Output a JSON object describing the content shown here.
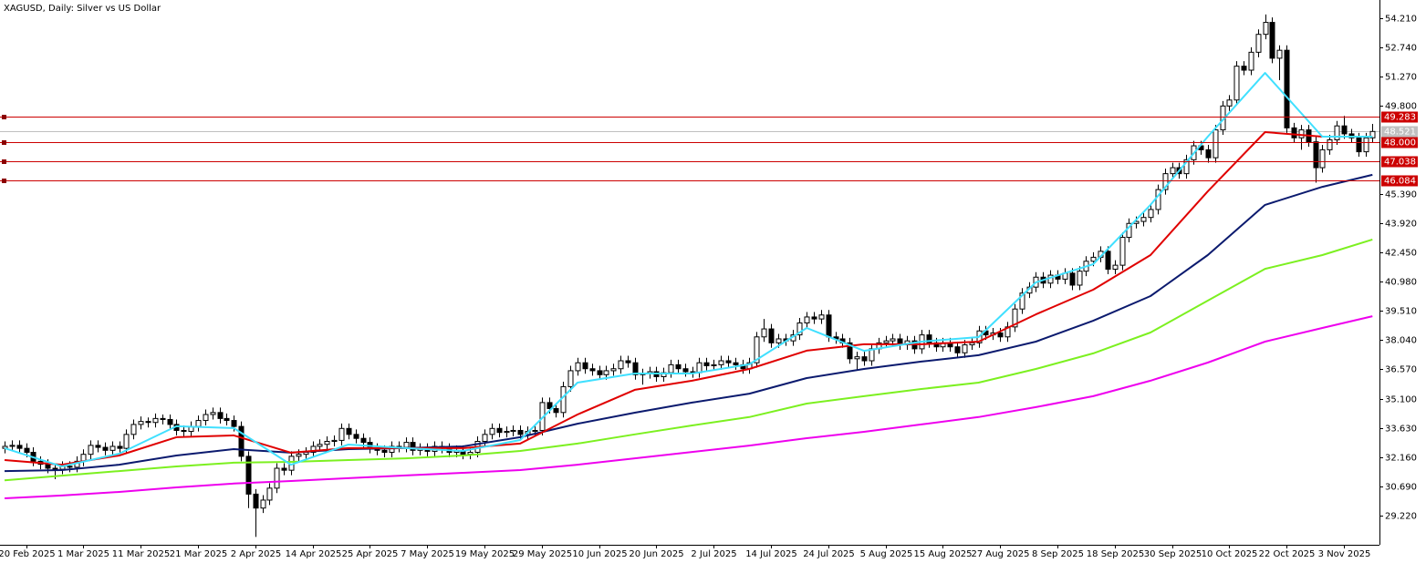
{
  "chart_data": {
    "type": "candlestick",
    "title": "XAGUSD, Daily:  Silver vs US Dollar",
    "categories": [
      null,
      null,
      null,
      "20 Feb 2025",
      null,
      null,
      null,
      null,
      null,
      null,
      null,
      "1 Mar 2025",
      null,
      null,
      null,
      null,
      null,
      null,
      null,
      "11 Mar 2025",
      null,
      null,
      null,
      null,
      null,
      null,
      null,
      "21 Mar 2025",
      null,
      null,
      null,
      null,
      null,
      null,
      null,
      "2 Apr 2025",
      null,
      null,
      null,
      null,
      null,
      null,
      null,
      "14 Apr 2025",
      null,
      null,
      null,
      null,
      null,
      null,
      null,
      "25 Apr 2025",
      null,
      null,
      null,
      null,
      null,
      null,
      null,
      "7 May 2025",
      null,
      null,
      null,
      null,
      null,
      null,
      null,
      "19 May 2025",
      null,
      null,
      null,
      null,
      null,
      null,
      null,
      "29 May 2025",
      null,
      null,
      null,
      null,
      null,
      null,
      null,
      "10 Jun 2025",
      null,
      null,
      null,
      null,
      null,
      null,
      null,
      "20 Jun 2025",
      null,
      null,
      null,
      null,
      null,
      null,
      null,
      "2 Jul 2025",
      null,
      null,
      null,
      null,
      null,
      null,
      null,
      "14 Jul 2025",
      null,
      null,
      null,
      null,
      null,
      null,
      null,
      "24 Jul 2025",
      null,
      null,
      null,
      null,
      null,
      null,
      null,
      "5 Aug 2025",
      null,
      null,
      null,
      null,
      null,
      null,
      null,
      "15 Aug 2025",
      null,
      null,
      null,
      null,
      null,
      null,
      null,
      "27 Aug 2025",
      null,
      null,
      null,
      null,
      null,
      null,
      null,
      "8 Sep 2025",
      null,
      null,
      null,
      null,
      null,
      null,
      null,
      "18 Sep 2025",
      null,
      null,
      null,
      null,
      null,
      null,
      null,
      "30 Sep 2025",
      null,
      null,
      null,
      null,
      null,
      null,
      null,
      "10 Oct 2025",
      null,
      null,
      null,
      null,
      null,
      null,
      null,
      "22 Oct 2025",
      null,
      null,
      null,
      null,
      null,
      null,
      null,
      "3 Nov 2025",
      null,
      null,
      null,
      null
    ],
    "open": [
      32.6,
      32.7,
      32.75,
      32.6,
      32.4,
      31.95,
      31.8,
      31.6,
      31.55,
      31.7,
      31.65,
      31.95,
      32.3,
      32.75,
      32.65,
      32.5,
      32.7,
      32.6,
      33.3,
      33.8,
      33.95,
      33.9,
      34.1,
      34.05,
      33.8,
      33.5,
      33.45,
      33.7,
      34.0,
      34.3,
      34.4,
      34.1,
      34.0,
      33.7,
      32.2,
      30.3,
      29.6,
      30.0,
      30.6,
      31.6,
      31.5,
      32.2,
      32.3,
      32.4,
      32.7,
      32.8,
      32.95,
      33.0,
      33.6,
      33.3,
      33.1,
      32.9,
      32.6,
      32.5,
      32.4,
      32.7,
      32.65,
      32.9,
      32.5,
      32.6,
      32.45,
      32.7,
      32.6,
      32.4,
      32.5,
      32.3,
      32.4,
      32.95,
      33.3,
      33.6,
      33.4,
      33.45,
      33.5,
      33.3,
      33.45,
      33.5,
      34.9,
      34.6,
      34.4,
      35.7,
      36.5,
      36.9,
      36.6,
      36.5,
      36.3,
      36.5,
      36.6,
      37.0,
      36.9,
      36.3,
      36.35,
      36.45,
      36.2,
      36.4,
      36.8,
      36.6,
      36.45,
      36.4,
      36.9,
      36.75,
      36.8,
      37.0,
      36.9,
      36.8,
      36.6,
      36.9,
      38.2,
      38.6,
      37.9,
      38.1,
      38.0,
      38.3,
      38.9,
      39.2,
      39.1,
      39.3,
      38.2,
      38.1,
      37.9,
      37.1,
      37.2,
      37.0,
      37.6,
      37.9,
      38.0,
      38.1,
      37.8,
      38.0,
      37.6,
      38.3,
      37.9,
      37.7,
      37.9,
      37.7,
      37.4,
      37.8,
      37.9,
      38.5,
      38.3,
      38.4,
      38.2,
      38.7,
      39.6,
      40.4,
      40.7,
      41.2,
      40.9,
      41.3,
      41.1,
      41.4,
      40.8,
      41.5,
      42.0,
      42.2,
      42.5,
      41.6,
      41.8,
      43.2,
      43.9,
      44.0,
      44.2,
      44.6,
      45.6,
      46.4,
      46.7,
      46.4,
      47.1,
      47.8,
      47.6,
      47.2,
      48.6,
      49.8,
      50.1,
      51.8,
      51.6,
      52.5,
      53.4,
      54.0,
      52.2,
      52.6,
      48.7,
      48.2,
      48.6,
      48.0,
      46.7,
      47.6,
      48.1,
      48.8,
      48.4,
      48.2,
      47.5,
      48.2
    ],
    "high": [
      32.95,
      33.0,
      33.0,
      32.85,
      32.65,
      32.2,
      32.05,
      31.85,
      31.95,
      31.95,
      32.2,
      32.55,
      33.0,
      33.0,
      32.9,
      32.95,
      32.95,
      33.55,
      34.05,
      34.2,
      34.15,
      34.35,
      34.3,
      34.3,
      34.05,
      33.75,
      33.95,
      34.25,
      34.55,
      34.65,
      34.65,
      34.35,
      34.25,
      33.95,
      32.45,
      30.55,
      30.25,
      30.85,
      31.85,
      31.85,
      32.45,
      32.55,
      32.65,
      32.95,
      33.05,
      33.2,
      33.25,
      33.85,
      33.85,
      33.55,
      33.35,
      33.15,
      32.85,
      32.75,
      32.95,
      32.95,
      33.15,
      33.15,
      32.85,
      32.85,
      32.95,
      32.95,
      32.85,
      32.75,
      32.75,
      32.65,
      33.2,
      33.55,
      33.85,
      33.85,
      33.7,
      33.75,
      33.75,
      33.7,
      33.75,
      35.15,
      35.15,
      34.85,
      35.95,
      36.75,
      37.15,
      37.15,
      36.85,
      36.75,
      36.75,
      36.85,
      37.25,
      37.25,
      37.15,
      36.6,
      36.7,
      36.7,
      36.65,
      37.05,
      37.05,
      36.85,
      36.7,
      37.15,
      37.15,
      37.05,
      37.25,
      37.25,
      37.15,
      37.05,
      37.15,
      38.45,
      39.1,
      38.85,
      38.35,
      38.35,
      38.55,
      39.15,
      39.45,
      39.45,
      39.55,
      39.55,
      38.45,
      38.35,
      38.15,
      37.45,
      37.45,
      37.85,
      38.15,
      38.25,
      38.35,
      38.35,
      38.25,
      38.25,
      38.55,
      38.55,
      38.15,
      38.15,
      38.15,
      37.95,
      38.05,
      38.15,
      38.75,
      38.75,
      38.65,
      38.65,
      38.95,
      39.85,
      40.65,
      40.95,
      41.45,
      41.45,
      41.55,
      41.55,
      41.65,
      41.65,
      41.75,
      42.25,
      42.45,
      42.75,
      42.75,
      42.05,
      43.45,
      44.15,
      44.25,
      44.45,
      44.85,
      45.85,
      46.65,
      46.95,
      46.95,
      47.35,
      48.05,
      48.05,
      47.85,
      48.85,
      50.05,
      50.35,
      52.05,
      52.05,
      52.75,
      53.65,
      54.4,
      54.25,
      52.85,
      52.85,
      48.95,
      48.85,
      48.85,
      48.25,
      47.85,
      48.35,
      49.05,
      49.3,
      48.65,
      48.45,
      48.45,
      48.9
    ],
    "low": [
      32.35,
      32.45,
      32.35,
      32.15,
      31.7,
      31.55,
      31.35,
      31.05,
      31.3,
      31.4,
      31.4,
      31.7,
      32.05,
      32.4,
      32.25,
      32.25,
      32.35,
      32.35,
      33.05,
      33.55,
      33.65,
      33.65,
      33.8,
      33.55,
      33.25,
      33.2,
      33.2,
      33.45,
      33.75,
      34.05,
      33.85,
      33.75,
      33.45,
      31.95,
      29.6,
      28.15,
      29.35,
      29.75,
      30.35,
      31.25,
      31.25,
      31.95,
      32.05,
      32.15,
      32.45,
      32.55,
      32.7,
      32.75,
      33.05,
      32.85,
      32.65,
      32.35,
      32.25,
      32.15,
      32.15,
      32.4,
      32.4,
      32.25,
      32.25,
      32.2,
      32.2,
      32.35,
      32.15,
      32.15,
      32.05,
      32.05,
      32.15,
      32.7,
      33.05,
      33.15,
      33.15,
      33.2,
      33.05,
      33.05,
      33.2,
      33.25,
      34.35,
      34.15,
      34.15,
      35.45,
      36.25,
      36.35,
      36.25,
      36.05,
      36.05,
      36.25,
      36.35,
      36.65,
      36.05,
      35.8,
      36.1,
      35.95,
      35.95,
      36.15,
      36.35,
      36.2,
      36.15,
      36.15,
      36.5,
      36.5,
      36.55,
      36.65,
      36.55,
      36.35,
      36.35,
      36.65,
      37.95,
      37.65,
      37.65,
      37.75,
      37.75,
      38.05,
      38.65,
      38.85,
      38.85,
      37.95,
      37.85,
      37.65,
      36.85,
      36.55,
      36.75,
      36.75,
      37.35,
      37.65,
      37.75,
      37.55,
      37.55,
      37.35,
      37.35,
      37.65,
      37.45,
      37.45,
      37.45,
      37.15,
      37.15,
      37.55,
      37.65,
      38.05,
      38.05,
      37.95,
      37.95,
      38.45,
      39.35,
      40.15,
      40.45,
      40.65,
      40.65,
      40.85,
      40.85,
      40.55,
      40.55,
      41.25,
      41.75,
      41.95,
      41.35,
      41.35,
      41.55,
      42.95,
      43.65,
      43.75,
      43.95,
      44.35,
      45.35,
      46.15,
      46.15,
      46.15,
      46.85,
      47.35,
      46.95,
      46.95,
      48.35,
      49.55,
      49.85,
      51.35,
      51.35,
      52.25,
      53.15,
      51.95,
      51.1,
      48.45,
      47.95,
      47.6,
      47.75,
      45.95,
      46.45,
      47.35,
      47.85,
      48.15,
      47.95,
      47.25,
      47.25,
      47.95
    ],
    "close": [
      32.7,
      32.75,
      32.6,
      32.4,
      31.95,
      31.8,
      31.6,
      31.55,
      31.7,
      31.65,
      31.95,
      32.3,
      32.75,
      32.65,
      32.5,
      32.7,
      32.6,
      33.3,
      33.8,
      33.95,
      33.9,
      34.1,
      34.05,
      33.8,
      33.5,
      33.45,
      33.7,
      34.0,
      34.3,
      34.4,
      34.1,
      34.0,
      33.7,
      32.2,
      30.3,
      29.6,
      30.0,
      30.6,
      31.6,
      31.5,
      32.2,
      32.3,
      32.4,
      32.7,
      32.8,
      32.95,
      33.0,
      33.6,
      33.3,
      33.1,
      32.9,
      32.6,
      32.5,
      32.4,
      32.7,
      32.65,
      32.9,
      32.5,
      32.6,
      32.45,
      32.7,
      32.6,
      32.4,
      32.5,
      32.3,
      32.4,
      32.95,
      33.3,
      33.6,
      33.4,
      33.45,
      33.5,
      33.3,
      33.45,
      33.5,
      34.9,
      34.6,
      34.4,
      35.7,
      36.5,
      36.9,
      36.6,
      36.5,
      36.3,
      36.5,
      36.6,
      37.0,
      36.9,
      36.3,
      36.35,
      36.45,
      36.2,
      36.4,
      36.8,
      36.6,
      36.45,
      36.4,
      36.9,
      36.75,
      36.8,
      37.0,
      36.9,
      36.8,
      36.6,
      36.9,
      38.2,
      38.6,
      37.9,
      38.1,
      38.0,
      38.3,
      38.9,
      39.2,
      39.1,
      39.3,
      38.2,
      38.1,
      37.9,
      37.1,
      37.2,
      37.0,
      37.6,
      37.9,
      38.0,
      38.1,
      37.8,
      38.0,
      37.6,
      38.3,
      37.9,
      37.7,
      37.9,
      37.7,
      37.4,
      37.8,
      37.9,
      38.5,
      38.3,
      38.4,
      38.2,
      38.7,
      39.6,
      40.4,
      40.7,
      41.2,
      40.9,
      41.3,
      41.1,
      41.4,
      40.8,
      41.5,
      42.0,
      42.2,
      42.5,
      41.6,
      41.8,
      43.2,
      43.9,
      44.0,
      44.2,
      44.6,
      45.6,
      46.4,
      46.7,
      46.4,
      47.1,
      47.8,
      47.6,
      47.2,
      48.6,
      49.8,
      50.1,
      51.8,
      51.6,
      52.5,
      53.4,
      54.0,
      52.2,
      52.6,
      48.7,
      48.2,
      48.6,
      48.0,
      46.7,
      47.6,
      48.1,
      48.8,
      48.4,
      48.2,
      47.5,
      48.2,
      48.52
    ],
    "color_up": "#ffffff",
    "color_down": "#000000",
    "ylim": [
      27.755,
      55.125
    ],
    "yticks": [
      {
        "value": 54.21,
        "label": "54.210"
      },
      {
        "value": 52.74,
        "label": "52.740"
      },
      {
        "value": 51.27,
        "label": "51.270"
      },
      {
        "value": 49.8,
        "label": "49.800"
      },
      {
        "value": 45.39,
        "label": "45.390"
      },
      {
        "value": 43.92,
        "label": "43.920"
      },
      {
        "value": 42.45,
        "label": "42.450"
      },
      {
        "value": 40.98,
        "label": "40.980"
      },
      {
        "value": 39.51,
        "label": "39.510"
      },
      {
        "value": 38.04,
        "label": "38.040"
      },
      {
        "value": 36.57,
        "label": "36.570"
      },
      {
        "value": 35.1,
        "label": "35.100"
      },
      {
        "value": 33.63,
        "label": "33.630"
      },
      {
        "value": 32.16,
        "label": "32.160"
      },
      {
        "value": 30.69,
        "label": "30.690"
      },
      {
        "value": 29.22,
        "label": "29.220"
      }
    ],
    "levels": [
      {
        "value": 49.283,
        "label": "49.283"
      },
      {
        "value": 48.0,
        "label": "48.000"
      },
      {
        "value": 47.038,
        "label": "47.038"
      },
      {
        "value": 46.084,
        "label": "46.084"
      }
    ],
    "level_color": "#cc0000",
    "last_price": {
      "value": 48.521,
      "label": "48.521"
    },
    "last_color": "#c0c0c0",
    "overlays": [
      {
        "color": "#ee00ee",
        "x": [
          0,
          8,
          16,
          24,
          32,
          40,
          48,
          56,
          64,
          72,
          80,
          88,
          96,
          104,
          112,
          120,
          128,
          136,
          144,
          152,
          160,
          168,
          176,
          184,
          191
        ],
        "values": [
          30.09,
          30.23,
          30.41,
          30.64,
          30.83,
          30.96,
          31.1,
          31.24,
          31.37,
          31.51,
          31.78,
          32.1,
          32.42,
          32.74,
          33.11,
          33.43,
          33.8,
          34.17,
          34.67,
          35.22,
          36.0,
          36.91,
          37.96,
          38.65,
          39.24
        ]
      },
      {
        "color": "#7cf020",
        "x": [
          0,
          8,
          16,
          24,
          32,
          40,
          48,
          56,
          64,
          72,
          80,
          88,
          96,
          104,
          112,
          120,
          128,
          136,
          144,
          152,
          160,
          168,
          176,
          184,
          191
        ],
        "values": [
          30.99,
          31.23,
          31.46,
          31.69,
          31.88,
          31.92,
          32.01,
          32.1,
          32.24,
          32.47,
          32.84,
          33.3,
          33.75,
          34.17,
          34.85,
          35.22,
          35.58,
          35.9,
          36.59,
          37.37,
          38.42,
          40.02,
          41.62,
          42.31,
          43.09
        ]
      },
      {
        "color": "#0b1a6e",
        "x": [
          0,
          8,
          16,
          24,
          32,
          40,
          48,
          56,
          64,
          72,
          80,
          88,
          96,
          104,
          112,
          120,
          128,
          136,
          144,
          152,
          160,
          168,
          176,
          184,
          191
        ],
        "values": [
          31.46,
          31.51,
          31.78,
          32.24,
          32.56,
          32.38,
          32.56,
          32.61,
          32.7,
          33.16,
          33.84,
          34.39,
          34.9,
          35.35,
          36.13,
          36.59,
          36.96,
          37.28,
          37.96,
          39.01,
          40.25,
          42.31,
          44.83,
          45.74,
          46.34
        ]
      },
      {
        "color": "#e00000",
        "x": [
          0,
          8,
          16,
          24,
          32,
          40,
          48,
          56,
          64,
          72,
          80,
          88,
          96,
          104,
          112,
          120,
          128,
          136,
          144,
          152,
          160,
          168,
          176,
          184,
          191
        ],
        "values": [
          32.01,
          31.78,
          32.24,
          33.16,
          33.25,
          32.38,
          32.61,
          32.61,
          32.61,
          32.84,
          34.3,
          35.54,
          36.0,
          36.59,
          37.51,
          37.83,
          37.83,
          37.96,
          39.33,
          40.57,
          42.31,
          45.51,
          48.49,
          48.26,
          48.26
        ]
      },
      {
        "color": "#40e0ff",
        "x": [
          0,
          8,
          16,
          24,
          32,
          40,
          48,
          56,
          64,
          72,
          80,
          88,
          96,
          104,
          112,
          120,
          128,
          136,
          144,
          152,
          160,
          168,
          176,
          184,
          191
        ],
        "values": [
          32.61,
          31.69,
          32.33,
          33.71,
          33.62,
          31.78,
          32.79,
          32.61,
          32.47,
          33.02,
          35.9,
          36.36,
          36.36,
          36.82,
          38.65,
          37.5,
          37.96,
          38.19,
          40.94,
          41.85,
          44.83,
          48.26,
          51.46,
          48.26,
          48.26
        ]
      }
    ]
  }
}
